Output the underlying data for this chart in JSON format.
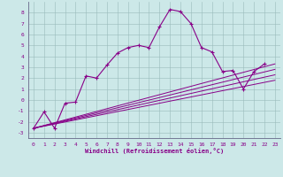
{
  "xlabel": "Windchill (Refroidissement éolien,°C)",
  "bg_color": "#cce8e8",
  "grid_color": "#b0c8c8",
  "line_color": "#880088",
  "xlim": [
    -0.5,
    23.5
  ],
  "ylim": [
    -3.5,
    9.0
  ],
  "xticks": [
    0,
    1,
    2,
    3,
    4,
    5,
    6,
    7,
    8,
    9,
    10,
    11,
    12,
    13,
    14,
    15,
    16,
    17,
    18,
    19,
    20,
    21,
    22,
    23
  ],
  "yticks": [
    -3,
    -2,
    -1,
    0,
    1,
    2,
    3,
    4,
    5,
    6,
    7,
    8
  ],
  "main_x": [
    0,
    1,
    2,
    3,
    4,
    5,
    6,
    7,
    8,
    9,
    10,
    11,
    12,
    13,
    14,
    15,
    16,
    17,
    18,
    19,
    20,
    21,
    22
  ],
  "main_y": [
    -2.6,
    -1.1,
    -2.6,
    -0.3,
    -0.2,
    2.2,
    2.0,
    3.2,
    4.3,
    4.8,
    5.0,
    4.8,
    6.7,
    8.3,
    8.1,
    7.0,
    4.8,
    4.4,
    2.6,
    2.7,
    1.0,
    2.6,
    3.3
  ],
  "ref_lines": [
    {
      "x0": 0,
      "y0": -2.6,
      "x1": 23,
      "y1": 3.3
    },
    {
      "x0": 0,
      "y0": -2.6,
      "x1": 23,
      "y1": 2.8
    },
    {
      "x0": 0,
      "y0": -2.6,
      "x1": 23,
      "y1": 2.3
    },
    {
      "x0": 0,
      "y0": -2.6,
      "x1": 23,
      "y1": 1.8
    }
  ]
}
